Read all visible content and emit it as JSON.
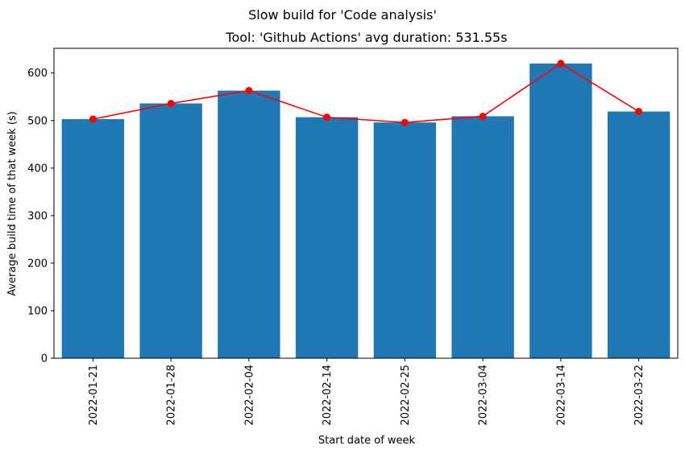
{
  "chart_data": {
    "type": "bar",
    "suptitle": "Slow build for 'Code analysis'",
    "title": "Tool: 'Github Actions' avg duration: 531.55s",
    "xlabel": "Start date of week",
    "ylabel": "Average build time of that week (s)",
    "categories": [
      "2022-01-21",
      "2022-01-28",
      "2022-02-04",
      "2022-02-14",
      "2022-02-25",
      "2022-03-04",
      "2022-03-14",
      "2022-03-22"
    ],
    "values": [
      503,
      536,
      563,
      507,
      496,
      509,
      620,
      519
    ],
    "line_values": [
      503,
      536,
      563,
      507,
      496,
      509,
      620,
      519
    ],
    "ylim": [
      0,
      652
    ],
    "yticks": [
      0,
      100,
      200,
      300,
      400,
      500,
      600
    ],
    "bar_color": "#1f77b4",
    "line_color": "#ff0000",
    "grid": false,
    "xtick_rotation": "vertical"
  }
}
